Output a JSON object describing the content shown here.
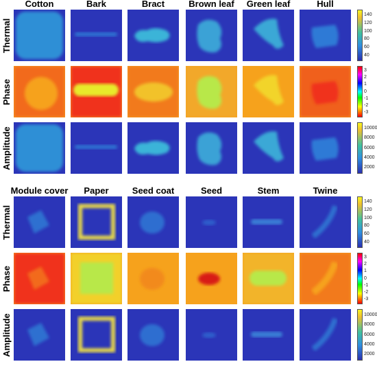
{
  "groups": [
    {
      "columns": [
        "Cotton",
        "Bark",
        "Bract",
        "Brown leaf",
        "Green leaf",
        "Hull"
      ],
      "rows": [
        "Thermal",
        "Phase",
        "Amplitude"
      ]
    },
    {
      "columns": [
        "Module cover",
        "Paper",
        "Seed coat",
        "Seed",
        "Stem",
        "Twine"
      ],
      "rows": [
        "Thermal",
        "Phase",
        "Amplitude"
      ]
    }
  ],
  "colorbars": {
    "Thermal": [
      "140",
      "120",
      "100",
      "80",
      "60",
      "40"
    ],
    "Phase": [
      "3",
      "2",
      "1",
      "0",
      "-1",
      "-2",
      "-3"
    ],
    "Amplitude": [
      "10000",
      "8000",
      "6000",
      "4000",
      "2000"
    ]
  },
  "colors": {
    "background_dark_blue": "#2b35b8",
    "cotton_blue": "#2f8fd6",
    "object_cyan": "#3bb4d8",
    "phase_red": "#f0301e",
    "phase_orange": "#f6a21e",
    "phase_yellow": "#e8ea2a",
    "phase_green": "#b8e84a"
  }
}
